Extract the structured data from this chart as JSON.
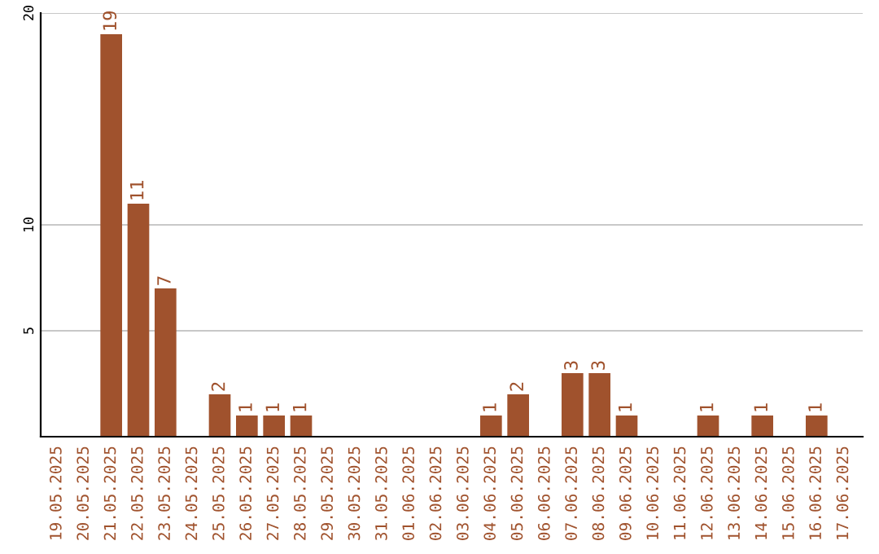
{
  "chart_data": {
    "type": "bar",
    "categories": [
      "19.05.2025",
      "20.05.2025",
      "21.05.2025",
      "22.05.2025",
      "23.05.2025",
      "24.05.2025",
      "25.05.2025",
      "26.05.2025",
      "27.05.2025",
      "28.05.2025",
      "29.05.2025",
      "30.05.2025",
      "31.05.2025",
      "01.06.2025",
      "02.06.2025",
      "03.06.2025",
      "04.06.2025",
      "05.06.2025",
      "06.06.2025",
      "07.06.2025",
      "08.06.2025",
      "09.06.2025",
      "10.06.2025",
      "11.06.2025",
      "12.06.2025",
      "13.06.2025",
      "14.06.2025",
      "15.06.2025",
      "16.06.2025",
      "17.06.2025"
    ],
    "values": [
      0,
      0,
      19,
      11,
      7,
      0,
      2,
      1,
      1,
      1,
      0,
      0,
      0,
      0,
      0,
      0,
      1,
      2,
      0,
      3,
      3,
      1,
      0,
      0,
      1,
      0,
      1,
      0,
      1,
      0
    ],
    "value_labels": [
      null,
      null,
      "19",
      "11",
      "7",
      null,
      "2",
      "1",
      "1",
      "1",
      null,
      null,
      null,
      null,
      null,
      null,
      "1",
      "2",
      null,
      "3",
      "3",
      "1",
      null,
      null,
      "1",
      null,
      "1",
      null,
      "1",
      null
    ],
    "color": "#a0522d",
    "ylim": [
      0,
      20
    ],
    "yticks": [
      5,
      10,
      20
    ],
    "grid": "y"
  }
}
